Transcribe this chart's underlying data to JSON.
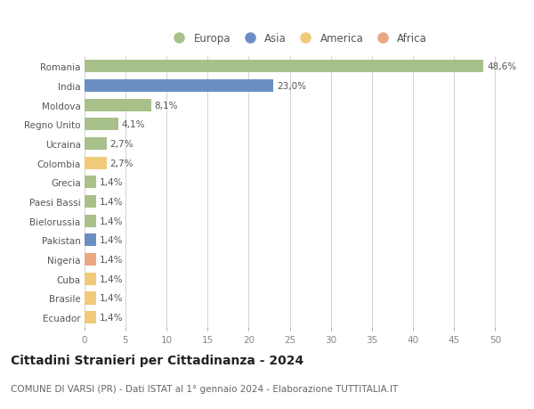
{
  "categories": [
    "Ecuador",
    "Brasile",
    "Cuba",
    "Nigeria",
    "Pakistan",
    "Bielorussia",
    "Paesi Bassi",
    "Grecia",
    "Colombia",
    "Ucraina",
    "Regno Unito",
    "Moldova",
    "India",
    "Romania"
  ],
  "values": [
    1.4,
    1.4,
    1.4,
    1.4,
    1.4,
    1.4,
    1.4,
    1.4,
    2.7,
    2.7,
    4.1,
    8.1,
    23.0,
    48.6
  ],
  "labels": [
    "1,4%",
    "1,4%",
    "1,4%",
    "1,4%",
    "1,4%",
    "1,4%",
    "1,4%",
    "1,4%",
    "2,7%",
    "2,7%",
    "4,1%",
    "8,1%",
    "23,0%",
    "48,6%"
  ],
  "colors": [
    "#f0c97a",
    "#f0c97a",
    "#f0c97a",
    "#e8a882",
    "#6b8fc2",
    "#a8c18a",
    "#a8c18a",
    "#a8c18a",
    "#f0c97a",
    "#a8c18a",
    "#a8c18a",
    "#a8c18a",
    "#6b8fc2",
    "#a8c18a"
  ],
  "legend": [
    {
      "label": "Europa",
      "color": "#a8c18a"
    },
    {
      "label": "Asia",
      "color": "#6b8fc2"
    },
    {
      "label": "America",
      "color": "#f0c97a"
    },
    {
      "label": "Africa",
      "color": "#e8a882"
    }
  ],
  "xlim": [
    0,
    52
  ],
  "xticks": [
    0,
    5,
    10,
    15,
    20,
    25,
    30,
    35,
    40,
    45,
    50
  ],
  "title": "Cittadini Stranieri per Cittadinanza - 2024",
  "subtitle": "COMUNE DI VARSI (PR) - Dati ISTAT al 1° gennaio 2024 - Elaborazione TUTTITALIA.IT",
  "background_color": "#ffffff",
  "grid_color": "#cccccc",
  "bar_height": 0.65,
  "label_fontsize": 7.5,
  "ytick_fontsize": 7.5,
  "xtick_fontsize": 7.5,
  "title_fontsize": 10,
  "subtitle_fontsize": 7.5
}
